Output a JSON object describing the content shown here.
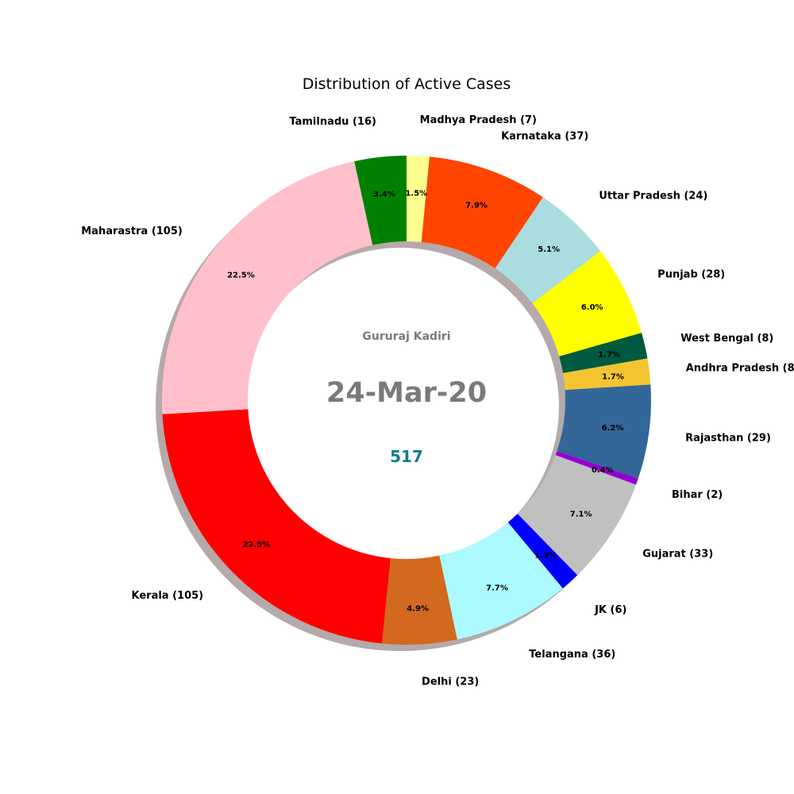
{
  "chart_data": {
    "type": "pie",
    "title": "Distribution of Active Cases",
    "center_text": {
      "author": "Gururaj Kadiri",
      "date": "24-Mar-20",
      "total": "517"
    },
    "colors": {
      "author": "#7a7a7a",
      "date": "#7a7a7a",
      "total": "#0e7c86",
      "shadow": "#a89a9a"
    },
    "slices": [
      {
        "label": "Madhya Pradesh (7)",
        "value": 7,
        "pct": "1.5%",
        "color": "#ffff8f"
      },
      {
        "label": "Karnataka (37)",
        "value": 37,
        "pct": "7.9%",
        "color": "#ff4500"
      },
      {
        "label": "Uttar Pradesh (24)",
        "value": 24,
        "pct": "5.1%",
        "color": "#aadddf"
      },
      {
        "label": "Punjab (28)",
        "value": 28,
        "pct": "6.0%",
        "color": "#ffff00"
      },
      {
        "label": "West Bengal (8)",
        "value": 8,
        "pct": "1.7%",
        "color": "#005a40"
      },
      {
        "label": "Andhra Pradesh (8)",
        "value": 8,
        "pct": "1.7%",
        "color": "#f4c430"
      },
      {
        "label": "Rajasthan (29)",
        "value": 29,
        "pct": "6.2%",
        "color": "#336699"
      },
      {
        "label": "Bihar (2)",
        "value": 2,
        "pct": "0.4%",
        "color": "#9400d3"
      },
      {
        "label": "Gujarat (33)",
        "value": 33,
        "pct": "7.1%",
        "color": "#c0c0c0"
      },
      {
        "label": "JK (6)",
        "value": 6,
        "pct": "1.3%",
        "color": "#0000ff"
      },
      {
        "label": "Telangana (36)",
        "value": 36,
        "pct": "7.7%",
        "color": "#aafaff"
      },
      {
        "label": "Delhi (23)",
        "value": 23,
        "pct": "4.9%",
        "color": "#d2691e"
      },
      {
        "label": "Kerala (105)",
        "value": 105,
        "pct": "22.5%",
        "color": "#ff0000"
      },
      {
        "label": "Maharastra (105)",
        "value": 105,
        "pct": "22.5%",
        "color": "#ffc0cb"
      },
      {
        "label": "Tamilnadu (16)",
        "value": 16,
        "pct": "3.4%",
        "color": "#008000"
      }
    ]
  }
}
